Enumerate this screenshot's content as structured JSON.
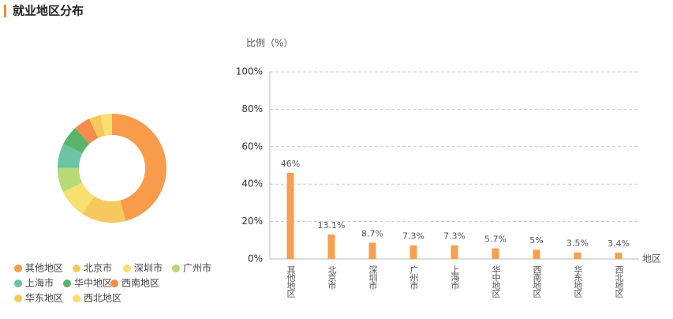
{
  "header": {
    "title": "就业地区分布"
  },
  "chart_data": [
    {
      "type": "donut",
      "categories": [
        "其他地区",
        "北京市",
        "深圳市",
        "广州市",
        "上海市",
        "华中地区",
        "西南地区",
        "华东地区",
        "西北地区"
      ],
      "values": [
        46,
        13.1,
        8.7,
        7.3,
        7.3,
        5.7,
        5,
        3.5,
        3.4
      ],
      "colors": [
        "#f89c4c",
        "#f6c95f",
        "#f7e06e",
        "#b6db74",
        "#6cc4a4",
        "#5bb36a",
        "#f68b4c",
        "#f6c95f",
        "#f7e06e"
      ]
    },
    {
      "type": "bar",
      "y_label": "比例（%）",
      "x_label": "地区",
      "categories": [
        "其他地区",
        "北京市",
        "深圳市",
        "广州市",
        "上海市",
        "华中地区",
        "西南地区",
        "华东地区",
        "西北地区"
      ],
      "values": [
        46,
        13.1,
        8.7,
        7.3,
        7.3,
        5.7,
        5,
        3.5,
        3.4
      ],
      "value_labels": [
        "46%",
        "13.1%",
        "8.7%",
        "7.3%",
        "7.3%",
        "5.7%",
        "5%",
        "3.5%",
        "3.4%"
      ],
      "color": "#f7a04f",
      "ylim": [
        0,
        100
      ],
      "yticks": [
        {
          "value": 0,
          "label": "0%"
        },
        {
          "value": 20,
          "label": "20%"
        },
        {
          "value": 40,
          "label": "40%"
        },
        {
          "value": 60,
          "label": "60%"
        },
        {
          "value": 80,
          "label": "80%"
        },
        {
          "value": 100,
          "label": "100%"
        }
      ],
      "grid": true
    }
  ]
}
